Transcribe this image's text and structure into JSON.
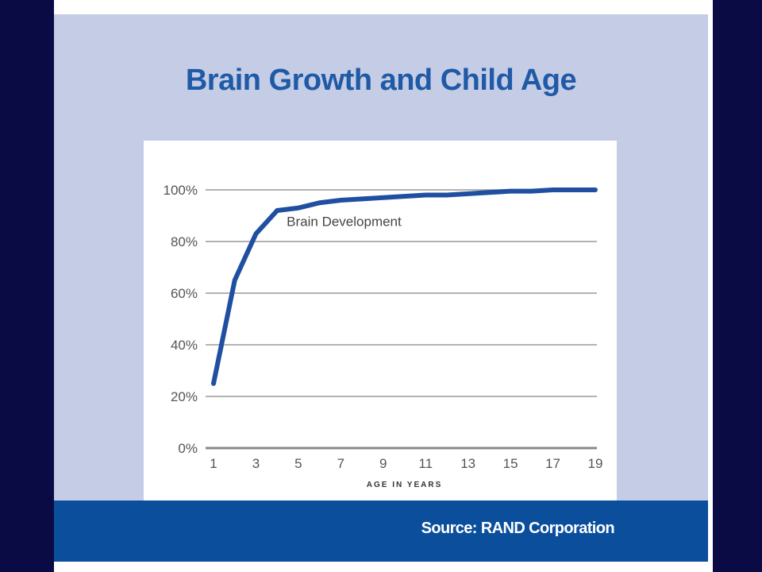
{
  "slide": {
    "title": "Brain Growth and Child Age",
    "source": "Source: RAND Corporation"
  },
  "colors": {
    "background": "#0a0a45",
    "panel": "#c5cce6",
    "title": "#1f5aa6",
    "footer": "#0b4f9c",
    "line": "#1f4fa0",
    "grid": "#9a9a9a"
  },
  "chart_data": {
    "type": "line",
    "title": "",
    "xlabel": "AGE IN YEARS",
    "ylabel": "",
    "xlim": [
      1,
      19
    ],
    "ylim": [
      0,
      100
    ],
    "x_ticks": [
      1,
      3,
      5,
      7,
      9,
      11,
      13,
      15,
      17,
      19
    ],
    "x_tick_labels": [
      "1",
      "3",
      "5",
      "7",
      "9",
      "11",
      "13",
      "15",
      "17",
      "19"
    ],
    "y_ticks": [
      0,
      20,
      40,
      60,
      80,
      100
    ],
    "y_tick_labels": [
      "0%",
      "20%",
      "40%",
      "60%",
      "80%",
      "100%"
    ],
    "grid": true,
    "series": [
      {
        "name": "Brain Development",
        "x": [
          1,
          2,
          3,
          4,
          5,
          6,
          7,
          8,
          9,
          10,
          11,
          12,
          13,
          14,
          15,
          16,
          17,
          18,
          19
        ],
        "values": [
          25,
          65,
          83,
          92,
          93,
          95,
          96,
          96.5,
          97,
          97.5,
          98,
          98,
          98.5,
          99,
          99.5,
          99.5,
          100,
          100,
          100
        ]
      }
    ],
    "annotations": [
      "Brain Development"
    ]
  }
}
